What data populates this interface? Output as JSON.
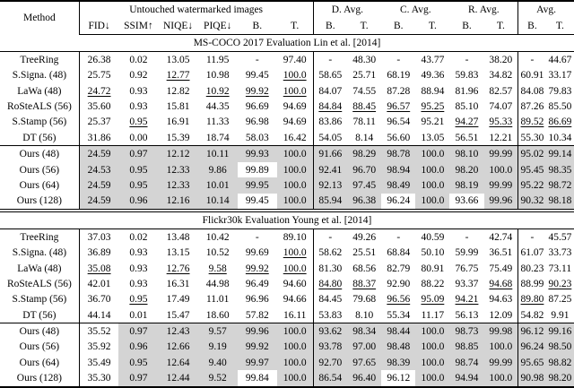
{
  "table": {
    "colors": {
      "highlight": "#d4d4d4",
      "rule": "#000000"
    },
    "header": {
      "method": "Method",
      "untouched_group": "Untouched watermarked images",
      "untouched_cols": [
        "FID↓",
        "SSIM↑",
        "NIQE↓",
        "PIQE↓",
        "B.",
        "T."
      ],
      "groups": [
        "D. Avg.",
        "C. Avg.",
        "R. Avg.",
        "Avg."
      ],
      "bt": [
        "B.",
        "T."
      ]
    },
    "sections": [
      {
        "title": "MS-COCO 2017 Evaluation Lin et al. [2014]",
        "baselines": [
          {
            "method": "TreeRing",
            "values": [
              "26.38",
              "0.02",
              "13.05",
              "11.95",
              "-",
              "97.40",
              "-",
              "48.30",
              "-",
              "43.77",
              "-",
              "38.20",
              "-",
              "44.67"
            ],
            "underline": []
          },
          {
            "method": "S.Signa. (48)",
            "values": [
              "25.75",
              "0.92",
              "12.77",
              "10.98",
              "99.45",
              "100.0",
              "58.65",
              "25.71",
              "68.19",
              "49.36",
              "59.83",
              "34.82",
              "60.91",
              "33.17"
            ],
            "underline": [
              2,
              5
            ]
          },
          {
            "method": "LaWa (48)",
            "values": [
              "24.72",
              "0.93",
              "12.82",
              "10.92",
              "99.92",
              "100.0",
              "84.07",
              "74.55",
              "87.28",
              "88.94",
              "81.96",
              "82.57",
              "84.08",
              "79.83"
            ],
            "underline": [
              0,
              3,
              4,
              5
            ]
          },
          {
            "method": "RoSteALS (56)",
            "values": [
              "35.60",
              "0.93",
              "15.81",
              "44.35",
              "96.69",
              "94.69",
              "84.84",
              "88.45",
              "96.57",
              "95.25",
              "85.10",
              "74.07",
              "87.26",
              "85.50"
            ],
            "underline": [
              6,
              7,
              8,
              9
            ]
          },
          {
            "method": "S.Stamp (56)",
            "values": [
              "25.37",
              "0.95",
              "16.91",
              "11.33",
              "96.98",
              "94.69",
              "83.86",
              "78.11",
              "96.54",
              "95.21",
              "94.27",
              "95.33",
              "89.52",
              "86.69"
            ],
            "underline": [
              1,
              10,
              11,
              12,
              13
            ]
          },
          {
            "method": "DT (56)",
            "values": [
              "31.86",
              "0.00",
              "15.39",
              "18.74",
              "58.03",
              "16.42",
              "54.05",
              "8.14",
              "56.60",
              "13.05",
              "56.51",
              "12.21",
              "55.30",
              "10.34"
            ],
            "underline": []
          }
        ],
        "ours": [
          {
            "method": "Ours (48)",
            "values": [
              "24.59",
              "0.97",
              "12.12",
              "10.11",
              "99.93",
              "100.0",
              "91.66",
              "98.29",
              "98.78",
              "100.0",
              "98.10",
              "99.99",
              "95.02",
              "99.14"
            ],
            "plain": []
          },
          {
            "method": "Ours (56)",
            "values": [
              "24.53",
              "0.95",
              "12.33",
              "9.86",
              "99.89",
              "100.0",
              "92.41",
              "96.70",
              "98.94",
              "100.0",
              "98.20",
              "100.0",
              "95.45",
              "98.35"
            ],
            "plain": [
              4
            ]
          },
          {
            "method": "Ours (64)",
            "values": [
              "24.59",
              "0.95",
              "12.33",
              "10.01",
              "99.95",
              "100.0",
              "92.13",
              "97.45",
              "98.49",
              "100.0",
              "98.19",
              "99.99",
              "95.22",
              "98.72"
            ],
            "plain": []
          },
          {
            "method": "Ours (128)",
            "values": [
              "24.59",
              "0.96",
              "12.16",
              "10.14",
              "99.45",
              "100.0",
              "85.94",
              "96.38",
              "96.24",
              "100.0",
              "93.66",
              "99.96",
              "90.32",
              "98.18"
            ],
            "plain": [
              4,
              8,
              10
            ]
          }
        ]
      },
      {
        "title": "Flickr30k Evaluation Young et al. [2014]",
        "baselines": [
          {
            "method": "TreeRing",
            "values": [
              "37.03",
              "0.02",
              "13.48",
              "10.42",
              "-",
              "89.10",
              "-",
              "49.26",
              "-",
              "40.59",
              "-",
              "42.74",
              "-",
              "45.57"
            ],
            "underline": []
          },
          {
            "method": "S.Signa. (48)",
            "values": [
              "36.89",
              "0.93",
              "13.15",
              "10.52",
              "99.69",
              "100.0",
              "58.62",
              "25.51",
              "68.84",
              "50.10",
              "59.99",
              "36.51",
              "61.07",
              "33.73"
            ],
            "underline": [
              5
            ]
          },
          {
            "method": "LaWa (48)",
            "values": [
              "35.08",
              "0.93",
              "12.76",
              "9.58",
              "99.92",
              "100.0",
              "81.30",
              "68.56",
              "82.79",
              "80.91",
              "76.75",
              "75.49",
              "80.23",
              "73.11"
            ],
            "underline": [
              0,
              2,
              3,
              4,
              5
            ]
          },
          {
            "method": "RoSteALS (56)",
            "values": [
              "42.01",
              "0.93",
              "16.31",
              "44.98",
              "96.49",
              "94.60",
              "84.80",
              "88.37",
              "92.90",
              "88.22",
              "93.37",
              "94.68",
              "88.99",
              "90.23"
            ],
            "underline": [
              6,
              7,
              11,
              13
            ]
          },
          {
            "method": "S.Stamp (56)",
            "values": [
              "36.70",
              "0.95",
              "17.49",
              "11.01",
              "96.96",
              "94.66",
              "84.45",
              "79.68",
              "96.56",
              "95.09",
              "94.21",
              "94.63",
              "89.80",
              "87.25"
            ],
            "underline": [
              1,
              8,
              9,
              10,
              12
            ]
          },
          {
            "method": "DT (56)",
            "values": [
              "44.14",
              "0.01",
              "15.47",
              "18.60",
              "57.82",
              "16.11",
              "53.83",
              "8.10",
              "55.34",
              "11.17",
              "56.13",
              "12.09",
              "54.82",
              "9.91"
            ],
            "underline": []
          }
        ],
        "ours": [
          {
            "method": "Ours (48)",
            "values": [
              "35.52",
              "0.97",
              "12.43",
              "9.57",
              "99.96",
              "100.0",
              "93.62",
              "98.34",
              "98.44",
              "100.0",
              "98.73",
              "99.98",
              "96.12",
              "99.16"
            ],
            "plain": [
              0
            ]
          },
          {
            "method": "Ours (56)",
            "values": [
              "35.92",
              "0.96",
              "12.66",
              "9.19",
              "99.92",
              "100.0",
              "93.78",
              "97.00",
              "98.48",
              "100.0",
              "98.85",
              "100.0",
              "96.24",
              "98.50"
            ],
            "plain": [
              0
            ]
          },
          {
            "method": "Ours (64)",
            "values": [
              "35.49",
              "0.95",
              "12.64",
              "9.40",
              "99.97",
              "100.0",
              "92.70",
              "97.65",
              "98.39",
              "100.0",
              "98.74",
              "99.99",
              "95.65",
              "98.82"
            ],
            "plain": [
              0
            ]
          },
          {
            "method": "Ours (128)",
            "values": [
              "35.30",
              "0.97",
              "12.44",
              "9.52",
              "99.84",
              "100.0",
              "86.54",
              "96.40",
              "96.12",
              "100.0",
              "94.94",
              "100.0",
              "90.98",
              "98.20"
            ],
            "plain": [
              0,
              4,
              8
            ]
          }
        ]
      }
    ]
  }
}
